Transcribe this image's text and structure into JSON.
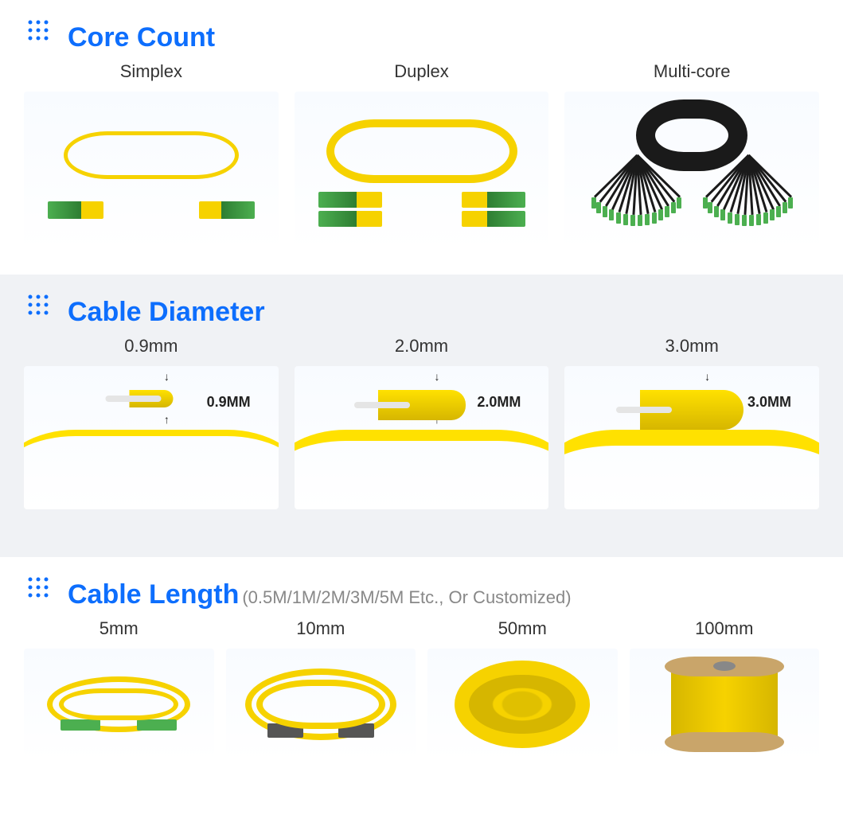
{
  "colors": {
    "accent": "#0d6efd",
    "subtitle": "#888888",
    "label_text": "#333333",
    "cable_yellow": "#f6d200",
    "cable_yellow_shade": "#d6b600",
    "connector_green": "#4caf50",
    "connector_green_dark": "#2e7d32",
    "black_cable": "#1a1a1a",
    "spool_cardboard": "#c9a56a",
    "section_bg_light": "#ffffff",
    "section_bg_dark": "#f0f2f5",
    "card_bg_top": "#f8fbff"
  },
  "sections": {
    "core_count": {
      "title": "Core Count",
      "items": [
        {
          "label": "Simplex"
        },
        {
          "label": "Duplex"
        },
        {
          "label": "Multi-core"
        }
      ]
    },
    "cable_diameter": {
      "title": "Cable Diameter",
      "items": [
        {
          "label": "0.9mm",
          "callout": "0.9MM"
        },
        {
          "label": "2.0mm",
          "callout": "2.0MM"
        },
        {
          "label": "3.0mm",
          "callout": "3.0MM"
        }
      ]
    },
    "cable_length": {
      "title": "Cable Length",
      "subtitle": "(0.5M/1M/2M/3M/5M Etc., Or Customized)",
      "items": [
        {
          "label": "5mm"
        },
        {
          "label": "10mm"
        },
        {
          "label": "50mm"
        },
        {
          "label": "100mm"
        }
      ]
    }
  }
}
